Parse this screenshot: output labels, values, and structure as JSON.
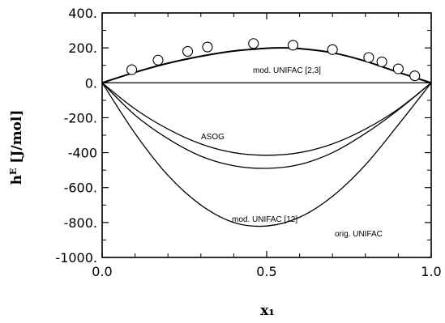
{
  "chart_data": {
    "type": "line",
    "title": "",
    "xlabel": "x₁",
    "ylabel": "h^E [J/mol]",
    "ylabel_main": "h",
    "ylabel_sup": "E",
    "ylabel_unit": " [J/mol]",
    "xlim": [
      0.0,
      1.0
    ],
    "ylim": [
      -1000,
      400
    ],
    "grid": false,
    "x_ticks": [
      0.0,
      0.5,
      1.0
    ],
    "x_tick_labels": [
      "0.0",
      "0.5",
      "1.0"
    ],
    "y_ticks": [
      400,
      200,
      0,
      -200,
      -400,
      -600,
      -800,
      -1000
    ],
    "y_tick_labels": [
      "400.",
      "200.",
      "0.",
      "-200.",
      "-400",
      "-600.",
      "-800.",
      "-1000."
    ],
    "series": [
      {
        "name": "mod. UNIFAC [2,3]",
        "type": "line",
        "x": [
          0.0,
          0.1,
          0.2,
          0.3,
          0.4,
          0.5,
          0.55,
          0.6,
          0.7,
          0.8,
          0.9,
          1.0
        ],
        "y": [
          0,
          60,
          112,
          152,
          182,
          198,
          200,
          196,
          172,
          124,
          60,
          0
        ]
      },
      {
        "name": "ASOG",
        "type": "line",
        "x": [
          0.0,
          0.1,
          0.2,
          0.3,
          0.4,
          0.5,
          0.6,
          0.7,
          0.8,
          0.9,
          1.0
        ],
        "y": [
          0,
          -150,
          -265,
          -350,
          -400,
          -415,
          -400,
          -350,
          -265,
          -150,
          0
        ]
      },
      {
        "name": "mod. UNIFAC [12]",
        "type": "line",
        "x": [
          0.0,
          0.1,
          0.2,
          0.3,
          0.4,
          0.5,
          0.6,
          0.7,
          0.8,
          0.9,
          1.0
        ],
        "y": [
          0,
          -185,
          -320,
          -420,
          -475,
          -490,
          -468,
          -400,
          -290,
          -155,
          0
        ]
      },
      {
        "name": "orig. UNIFAC",
        "type": "line",
        "x": [
          0.0,
          0.1,
          0.2,
          0.3,
          0.4,
          0.5,
          0.6,
          0.7,
          0.8,
          0.9,
          1.0
        ],
        "y": [
          0,
          -290,
          -530,
          -700,
          -800,
          -820,
          -770,
          -650,
          -470,
          -240,
          0
        ]
      },
      {
        "name": "",
        "type": "scatter",
        "x": [
          0.09,
          0.17,
          0.26,
          0.32,
          0.46,
          0.58,
          0.7,
          0.81,
          0.85,
          0.9,
          0.95
        ],
        "y": [
          75,
          130,
          180,
          205,
          225,
          215,
          190,
          145,
          120,
          80,
          40
        ]
      }
    ],
    "annotations": [
      {
        "text": "mod. UNIFAC [2,3]",
        "series": "mod. UNIFAC [2,3]"
      },
      {
        "text": "ASOG",
        "series": "ASOG"
      },
      {
        "text": "mod. UNIFAC [12]",
        "series": "mod. UNIFAC [12]"
      },
      {
        "text": "orig. UNIFAC",
        "series": "orig. UNIFAC"
      }
    ],
    "colors": {
      "line": "#000000",
      "marker_stroke": "#000000",
      "background": "#ffffff"
    }
  }
}
